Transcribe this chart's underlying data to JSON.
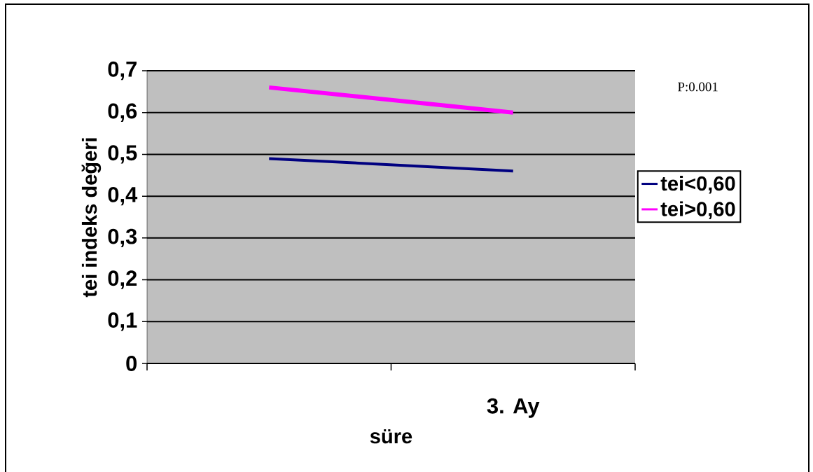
{
  "chart_data": {
    "type": "line",
    "xlabel": "süre",
    "ylabel": "tei indeks değeri",
    "categories": [
      null,
      "3. Ay"
    ],
    "series": [
      {
        "name": "tei<0,60",
        "color": "#000080",
        "values": [
          0.49,
          0.46
        ]
      },
      {
        "name": "tei>0,60",
        "color": "#ff00ff",
        "values": [
          0.66,
          0.6
        ]
      }
    ],
    "ylim": [
      0,
      0.7
    ],
    "yticks": [
      0,
      {
        "value": 0.1,
        "label": "0,1"
      },
      {
        "value": 0.2,
        "label": "0,2"
      },
      {
        "value": 0.3,
        "label": "0,3"
      },
      {
        "value": 0.4,
        "label": "0,4"
      },
      {
        "value": 0.5,
        "label": "0,5"
      },
      {
        "value": 0.6,
        "label": "0,6"
      },
      {
        "value": 0.7,
        "label": "0,7"
      }
    ],
    "grid": "y",
    "legend": "right",
    "marker": "none",
    "line_style": "solid",
    "annotations": [
      "P:0.001"
    ]
  }
}
